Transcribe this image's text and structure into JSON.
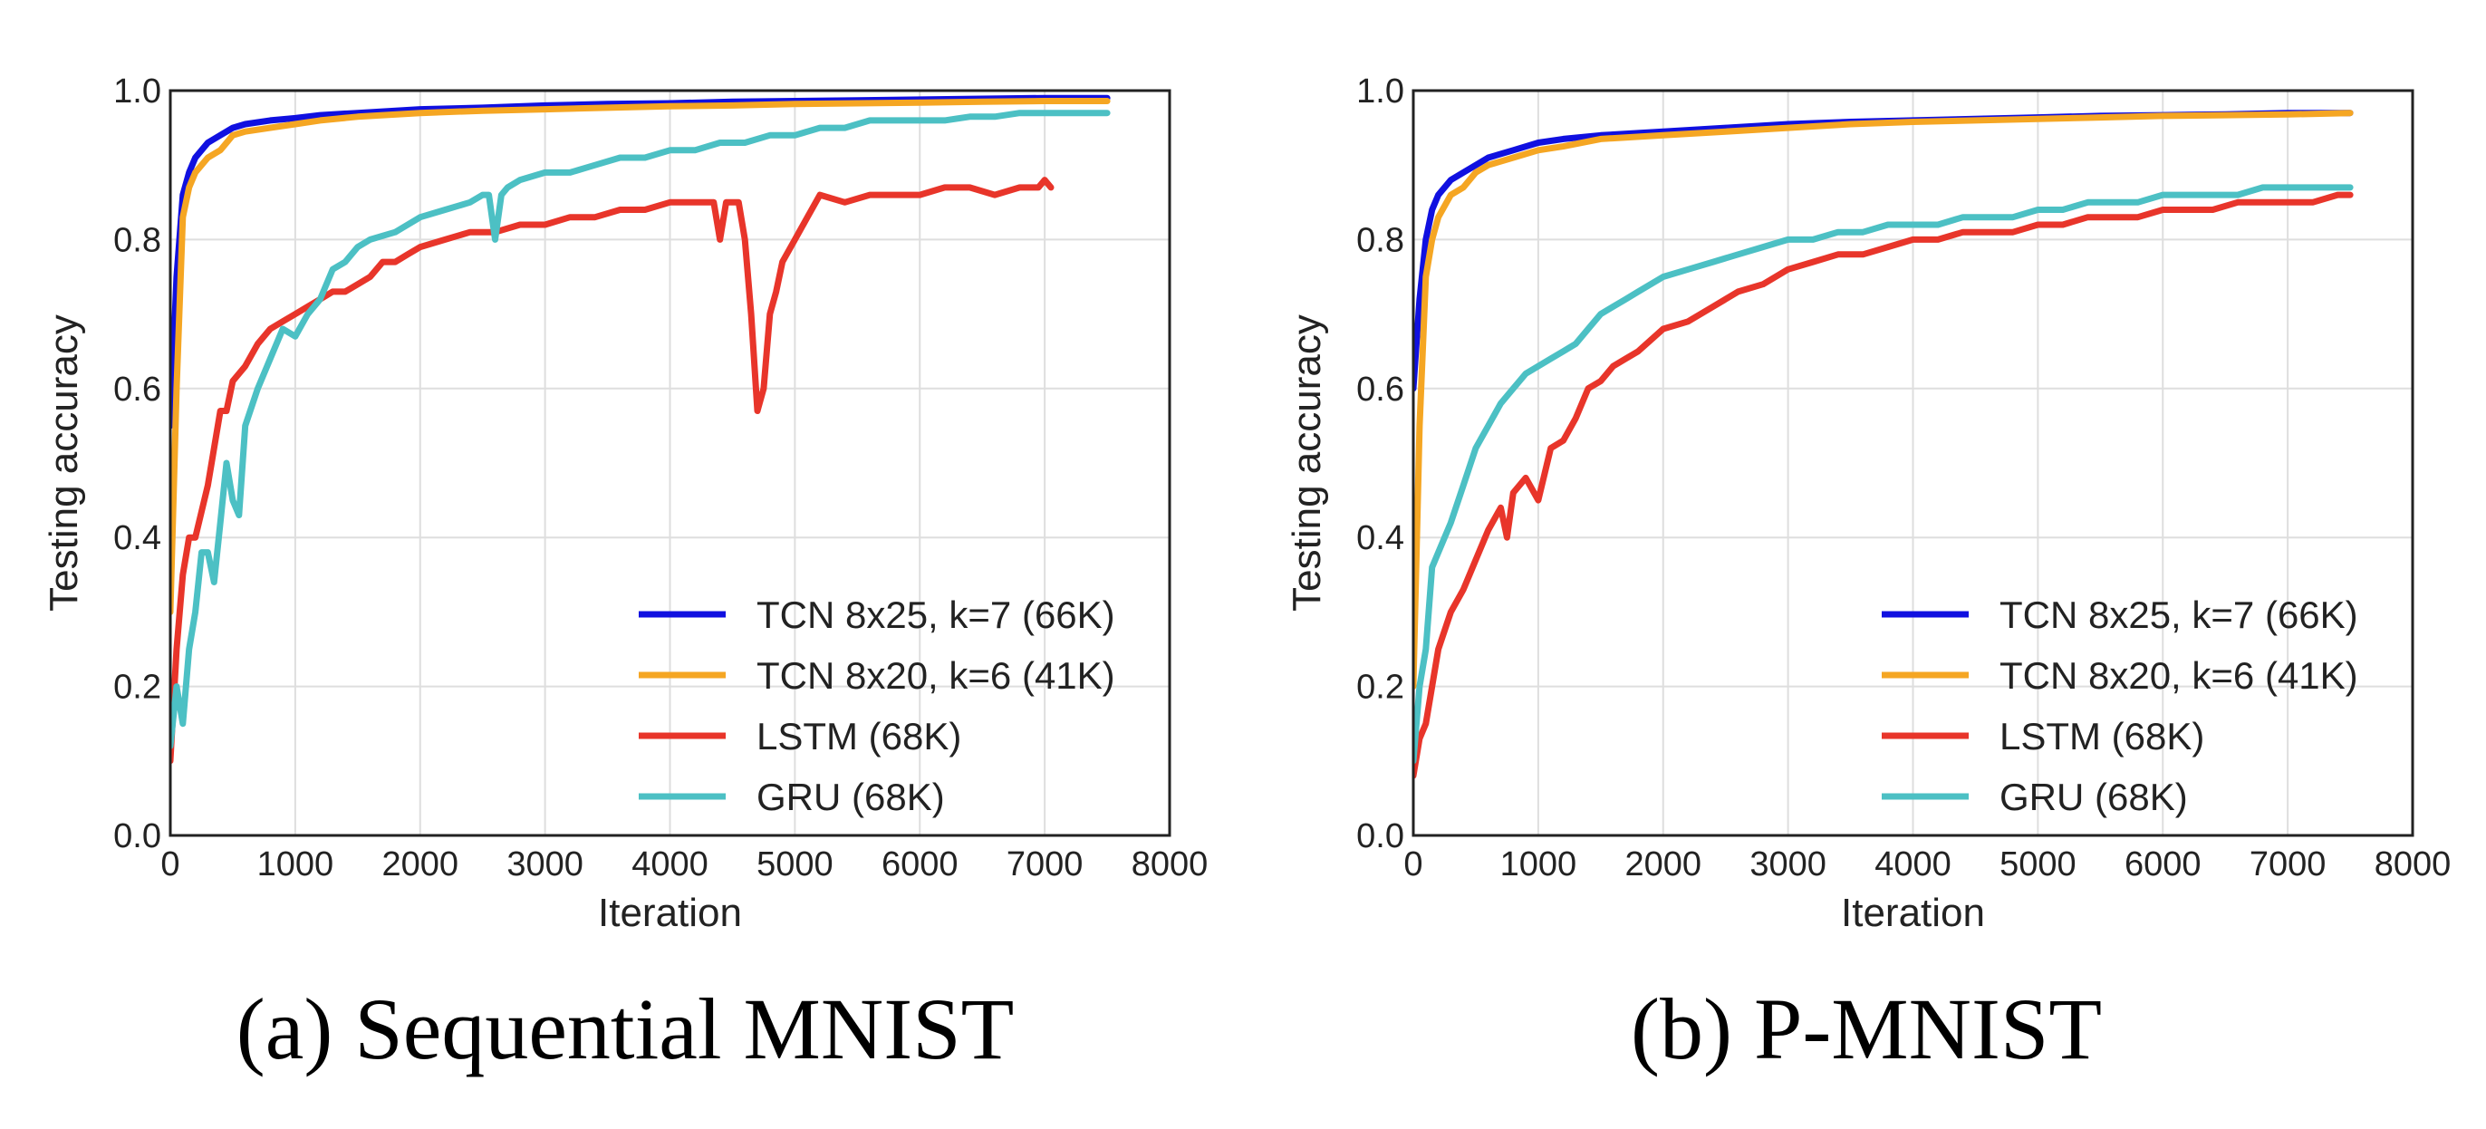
{
  "series_colors": {
    "TCN 8x25, k=7 (66K)": "#1010e0",
    "TCN 8x20, k=6 (41K)": "#f5a623",
    "LSTM (68K)": "#e8352a",
    "GRU (68K)": "#4cc0c4"
  },
  "chart_data": [
    {
      "type": "line",
      "caption": "(a) Sequential MNIST",
      "xlabel": "Iteration",
      "ylabel": "Testing accuracy",
      "xlim": [
        0,
        8000
      ],
      "ylim": [
        0.0,
        1.0
      ],
      "xticks": [
        "0",
        "1000",
        "2000",
        "3000",
        "4000",
        "5000",
        "6000",
        "7000",
        "8000"
      ],
      "yticks": [
        "0.0",
        "0.2",
        "0.4",
        "0.6",
        "0.8",
        "1.0"
      ],
      "grid": true,
      "legend_position": "lower-right",
      "series": [
        {
          "name": "TCN 8x25, k=7 (66K)",
          "x": [
            0,
            50,
            100,
            150,
            200,
            300,
            400,
            500,
            600,
            800,
            1000,
            1200,
            1500,
            2000,
            2500,
            3000,
            3500,
            4000,
            4500,
            5000,
            5500,
            6000,
            6500,
            7000,
            7500
          ],
          "y": [
            0.55,
            0.75,
            0.86,
            0.89,
            0.91,
            0.93,
            0.94,
            0.95,
            0.955,
            0.96,
            0.963,
            0.967,
            0.97,
            0.975,
            0.977,
            0.98,
            0.982,
            0.983,
            0.985,
            0.986,
            0.987,
            0.988,
            0.989,
            0.99,
            0.99
          ]
        },
        {
          "name": "TCN 8x20, k=6 (41K)",
          "x": [
            0,
            50,
            100,
            150,
            200,
            300,
            400,
            500,
            600,
            800,
            1000,
            1200,
            1500,
            2000,
            2500,
            3000,
            3500,
            4000,
            4500,
            5000,
            5500,
            6000,
            6500,
            7000,
            7500
          ],
          "y": [
            0.3,
            0.6,
            0.83,
            0.87,
            0.89,
            0.91,
            0.92,
            0.94,
            0.945,
            0.95,
            0.955,
            0.96,
            0.965,
            0.97,
            0.973,
            0.975,
            0.977,
            0.979,
            0.98,
            0.982,
            0.983,
            0.984,
            0.985,
            0.986,
            0.986
          ]
        },
        {
          "name": "LSTM (68K)",
          "x": [
            0,
            50,
            100,
            150,
            200,
            300,
            350,
            400,
            450,
            500,
            600,
            700,
            800,
            900,
            1000,
            1100,
            1200,
            1300,
            1400,
            1500,
            1600,
            1700,
            1800,
            1900,
            2000,
            2200,
            2400,
            2600,
            2800,
            3000,
            3200,
            3400,
            3600,
            3800,
            4000,
            4200,
            4350,
            4400,
            4450,
            4500,
            4550,
            4600,
            4650,
            4700,
            4750,
            4800,
            4850,
            4900,
            5000,
            5100,
            5200,
            5400,
            5600,
            5800,
            6000,
            6200,
            6400,
            6600,
            6800,
            6950,
            7000,
            7050
          ],
          "y": [
            0.1,
            0.25,
            0.35,
            0.4,
            0.4,
            0.47,
            0.52,
            0.57,
            0.57,
            0.61,
            0.63,
            0.66,
            0.68,
            0.69,
            0.7,
            0.71,
            0.72,
            0.73,
            0.73,
            0.74,
            0.75,
            0.77,
            0.77,
            0.78,
            0.79,
            0.8,
            0.81,
            0.81,
            0.82,
            0.82,
            0.83,
            0.83,
            0.84,
            0.84,
            0.85,
            0.85,
            0.85,
            0.8,
            0.85,
            0.85,
            0.85,
            0.8,
            0.7,
            0.57,
            0.6,
            0.7,
            0.73,
            0.77,
            0.8,
            0.83,
            0.86,
            0.85,
            0.86,
            0.86,
            0.86,
            0.87,
            0.87,
            0.86,
            0.87,
            0.87,
            0.88,
            0.87
          ]
        },
        {
          "name": "GRU (68K)",
          "x": [
            0,
            50,
            100,
            150,
            200,
            250,
            300,
            350,
            400,
            450,
            500,
            550,
            600,
            700,
            800,
            900,
            1000,
            1100,
            1200,
            1300,
            1400,
            1500,
            1600,
            1800,
            2000,
            2200,
            2400,
            2500,
            2550,
            2600,
            2650,
            2700,
            2800,
            3000,
            3200,
            3400,
            3600,
            3800,
            4000,
            4200,
            4400,
            4600,
            4800,
            5000,
            5200,
            5400,
            5600,
            5800,
            6000,
            6200,
            6400,
            6600,
            6800,
            7000,
            7200,
            7400,
            7500
          ],
          "y": [
            0.12,
            0.2,
            0.15,
            0.25,
            0.3,
            0.38,
            0.38,
            0.34,
            0.42,
            0.5,
            0.45,
            0.43,
            0.55,
            0.6,
            0.64,
            0.68,
            0.67,
            0.7,
            0.72,
            0.76,
            0.77,
            0.79,
            0.8,
            0.81,
            0.83,
            0.84,
            0.85,
            0.86,
            0.86,
            0.8,
            0.86,
            0.87,
            0.88,
            0.89,
            0.89,
            0.9,
            0.91,
            0.91,
            0.92,
            0.92,
            0.93,
            0.93,
            0.94,
            0.94,
            0.95,
            0.95,
            0.96,
            0.96,
            0.96,
            0.96,
            0.965,
            0.965,
            0.97,
            0.97,
            0.97,
            0.97,
            0.97
          ]
        }
      ]
    },
    {
      "type": "line",
      "caption": "(b) P-MNIST",
      "xlabel": "Iteration",
      "ylabel": "Testing accuracy",
      "xlim": [
        0,
        8000
      ],
      "ylim": [
        0.0,
        1.0
      ],
      "xticks": [
        "0",
        "1000",
        "2000",
        "3000",
        "4000",
        "5000",
        "6000",
        "7000",
        "8000"
      ],
      "yticks": [
        "0.0",
        "0.2",
        "0.4",
        "0.6",
        "0.8",
        "1.0"
      ],
      "grid": true,
      "legend_position": "lower-right",
      "series": [
        {
          "name": "TCN 8x25, k=7 (66K)",
          "x": [
            0,
            50,
            100,
            150,
            200,
            300,
            400,
            500,
            600,
            800,
            1000,
            1200,
            1500,
            2000,
            2500,
            3000,
            3500,
            4000,
            4500,
            5000,
            5500,
            6000,
            6500,
            7000,
            7500
          ],
          "y": [
            0.6,
            0.72,
            0.8,
            0.84,
            0.86,
            0.88,
            0.89,
            0.9,
            0.91,
            0.92,
            0.93,
            0.935,
            0.94,
            0.945,
            0.95,
            0.955,
            0.958,
            0.96,
            0.962,
            0.964,
            0.966,
            0.967,
            0.968,
            0.97,
            0.97
          ]
        },
        {
          "name": "TCN 8x20, k=6 (41K)",
          "x": [
            0,
            50,
            100,
            150,
            200,
            300,
            400,
            500,
            600,
            800,
            1000,
            1200,
            1500,
            2000,
            2500,
            3000,
            3500,
            4000,
            4500,
            5000,
            5500,
            6000,
            6500,
            7000,
            7500
          ],
          "y": [
            0.2,
            0.55,
            0.75,
            0.8,
            0.83,
            0.86,
            0.87,
            0.89,
            0.9,
            0.91,
            0.92,
            0.925,
            0.935,
            0.94,
            0.945,
            0.95,
            0.955,
            0.958,
            0.96,
            0.962,
            0.964,
            0.966,
            0.967,
            0.968,
            0.97
          ]
        },
        {
          "name": "LSTM (68K)",
          "x": [
            0,
            50,
            100,
            150,
            200,
            300,
            400,
            500,
            600,
            700,
            750,
            800,
            900,
            1000,
            1100,
            1200,
            1300,
            1400,
            1500,
            1600,
            1700,
            1800,
            2000,
            2200,
            2400,
            2600,
            2800,
            3000,
            3200,
            3400,
            3600,
            3800,
            4000,
            4200,
            4400,
            4600,
            4800,
            5000,
            5200,
            5400,
            5600,
            5800,
            6000,
            6200,
            6400,
            6600,
            6800,
            7000,
            7200,
            7400,
            7500
          ],
          "y": [
            0.08,
            0.13,
            0.15,
            0.2,
            0.25,
            0.3,
            0.33,
            0.37,
            0.41,
            0.44,
            0.4,
            0.46,
            0.48,
            0.45,
            0.52,
            0.53,
            0.56,
            0.6,
            0.61,
            0.63,
            0.64,
            0.65,
            0.68,
            0.69,
            0.71,
            0.73,
            0.74,
            0.76,
            0.77,
            0.78,
            0.78,
            0.79,
            0.8,
            0.8,
            0.81,
            0.81,
            0.81,
            0.82,
            0.82,
            0.83,
            0.83,
            0.83,
            0.84,
            0.84,
            0.84,
            0.85,
            0.85,
            0.85,
            0.85,
            0.86,
            0.86
          ]
        },
        {
          "name": "GRU (68K)",
          "x": [
            0,
            50,
            100,
            150,
            200,
            300,
            400,
            500,
            600,
            700,
            800,
            900,
            1000,
            1100,
            1200,
            1300,
            1400,
            1500,
            1600,
            1700,
            1800,
            2000,
            2200,
            2400,
            2600,
            2800,
            3000,
            3200,
            3400,
            3600,
            3800,
            4000,
            4200,
            4400,
            4600,
            4800,
            5000,
            5200,
            5400,
            5600,
            5800,
            6000,
            6200,
            6400,
            6600,
            6800,
            7000,
            7200,
            7400,
            7500
          ],
          "y": [
            0.1,
            0.2,
            0.25,
            0.36,
            0.38,
            0.42,
            0.47,
            0.52,
            0.55,
            0.58,
            0.6,
            0.62,
            0.63,
            0.64,
            0.65,
            0.66,
            0.68,
            0.7,
            0.71,
            0.72,
            0.73,
            0.75,
            0.76,
            0.77,
            0.78,
            0.79,
            0.8,
            0.8,
            0.81,
            0.81,
            0.82,
            0.82,
            0.82,
            0.83,
            0.83,
            0.83,
            0.84,
            0.84,
            0.85,
            0.85,
            0.85,
            0.86,
            0.86,
            0.86,
            0.86,
            0.87,
            0.87,
            0.87,
            0.87,
            0.87
          ]
        }
      ]
    }
  ]
}
